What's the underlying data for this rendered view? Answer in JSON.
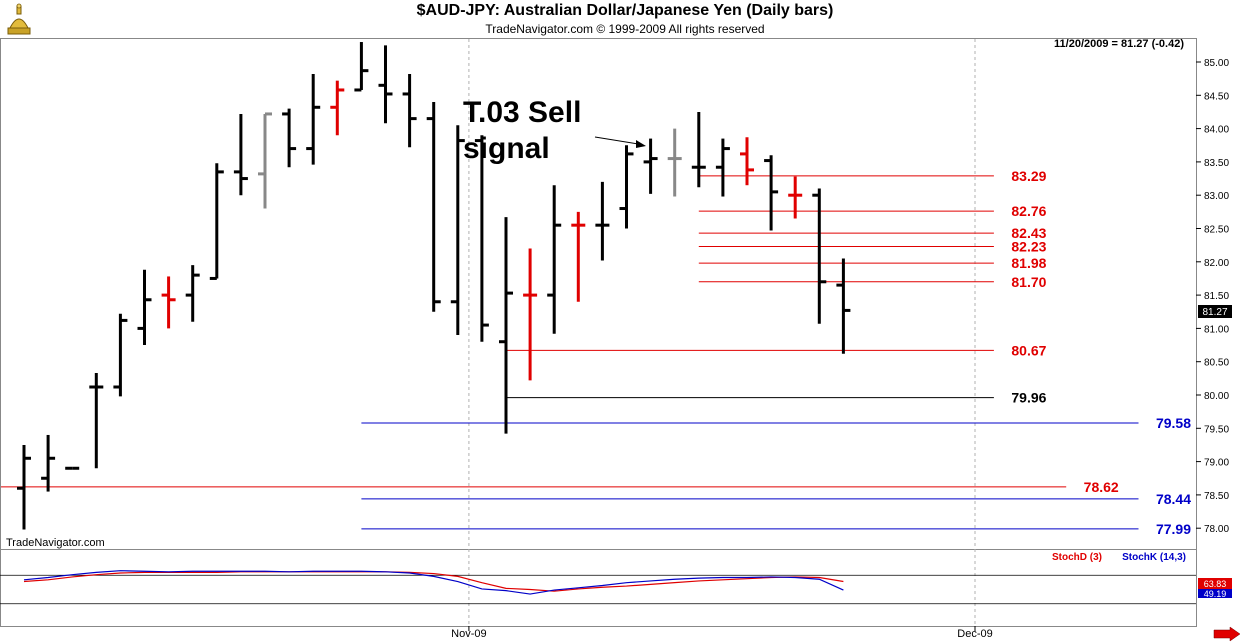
{
  "header": {
    "title": "$AUD-JPY:  Australian Dollar/Japanese Yen  (Daily bars)",
    "subtitle": "TradeNavigator.com © 1999-2009 All rights reserved",
    "last_price_info": "11/20/2009 = 81.27 (-0.42)",
    "watermark": "TradeNavigator.com",
    "logo_icon": "gold-dome-logo"
  },
  "colors": {
    "up_bar": "#000000",
    "down_bar": "#e00000",
    "neutral_bar": "#888888",
    "level_red": "#e00000",
    "level_blue": "#0000c8",
    "level_black": "#000000",
    "stoch_d": "#e00000",
    "stoch_k": "#0000c8",
    "grid": "#b0b0b0"
  },
  "chart_data": [
    {
      "type": "ohlc",
      "title": "$AUD-JPY:  Australian Dollar/Japanese Yen  (Daily bars)",
      "ylim": [
        77.75,
        85.35
      ],
      "y_ticks": [
        "78.00",
        "78.50",
        "79.00",
        "79.50",
        "80.00",
        "80.50",
        "81.00",
        "81.50",
        "82.00",
        "82.50",
        "83.00",
        "83.50",
        "84.00",
        "84.50",
        "85.00"
      ],
      "x_tick_labels": [
        {
          "label": "Nov-09",
          "bar_index": 19
        },
        {
          "label": "Dec-09",
          "bar_index": 40
        }
      ],
      "last_price_label": "81.27",
      "bars": [
        {
          "o": 78.6,
          "h": 79.25,
          "l": 77.98,
          "c": 79.05,
          "col": "up"
        },
        {
          "o": 78.75,
          "h": 79.4,
          "l": 78.55,
          "c": 79.05,
          "col": "up"
        },
        {
          "o": 78.9,
          "h": 78.9,
          "l": 78.9,
          "c": 78.9,
          "col": "up"
        },
        {
          "o": 80.12,
          "h": 80.33,
          "l": 78.9,
          "c": 80.12,
          "col": "up"
        },
        {
          "o": 80.12,
          "h": 81.22,
          "l": 79.98,
          "c": 81.12,
          "col": "up"
        },
        {
          "o": 81.0,
          "h": 81.88,
          "l": 80.75,
          "c": 81.43,
          "col": "up"
        },
        {
          "o": 81.5,
          "h": 81.78,
          "l": 81.0,
          "c": 81.43,
          "col": "down"
        },
        {
          "o": 81.5,
          "h": 81.95,
          "l": 81.1,
          "c": 81.8,
          "col": "up"
        },
        {
          "o": 81.75,
          "h": 83.48,
          "l": 81.75,
          "c": 83.35,
          "col": "up"
        },
        {
          "o": 83.35,
          "h": 84.22,
          "l": 83.0,
          "c": 83.25,
          "col": "up"
        },
        {
          "o": 83.32,
          "h": 84.22,
          "l": 82.8,
          "c": 84.22,
          "col": "neutral"
        },
        {
          "o": 84.22,
          "h": 84.3,
          "l": 83.42,
          "c": 83.7,
          "col": "up"
        },
        {
          "o": 83.7,
          "h": 84.82,
          "l": 83.46,
          "c": 84.32,
          "col": "up"
        },
        {
          "o": 84.32,
          "h": 84.72,
          "l": 83.9,
          "c": 84.58,
          "col": "down"
        },
        {
          "o": 84.58,
          "h": 85.3,
          "l": 84.58,
          "c": 84.87,
          "col": "up"
        },
        {
          "o": 84.65,
          "h": 85.25,
          "l": 84.08,
          "c": 84.52,
          "col": "up"
        },
        {
          "o": 84.52,
          "h": 84.82,
          "l": 83.72,
          "c": 84.15,
          "col": "up"
        },
        {
          "o": 84.15,
          "h": 84.4,
          "l": 81.25,
          "c": 81.4,
          "col": "up"
        },
        {
          "o": 81.4,
          "h": 84.05,
          "l": 80.9,
          "c": 83.82,
          "col": "up"
        },
        {
          "o": 83.82,
          "h": 83.9,
          "l": 80.8,
          "c": 81.05,
          "col": "up"
        },
        {
          "o": 80.8,
          "h": 82.67,
          "l": 79.42,
          "c": 81.53,
          "col": "up"
        },
        {
          "o": 81.5,
          "h": 82.2,
          "l": 80.22,
          "c": 81.5,
          "col": "down"
        },
        {
          "o": 81.5,
          "h": 83.15,
          "l": 80.92,
          "c": 82.55,
          "col": "up"
        },
        {
          "o": 82.55,
          "h": 82.75,
          "l": 81.4,
          "c": 82.55,
          "col": "down"
        },
        {
          "o": 82.55,
          "h": 83.2,
          "l": 82.02,
          "c": 82.55,
          "col": "up"
        },
        {
          "o": 82.8,
          "h": 83.75,
          "l": 82.5,
          "c": 83.62,
          "col": "up"
        },
        {
          "o": 83.5,
          "h": 83.85,
          "l": 83.02,
          "c": 83.55,
          "col": "up"
        },
        {
          "o": 83.55,
          "h": 84.0,
          "l": 82.98,
          "c": 83.55,
          "col": "neutral"
        },
        {
          "o": 83.42,
          "h": 84.25,
          "l": 83.12,
          "c": 83.42,
          "col": "up"
        },
        {
          "o": 83.42,
          "h": 83.85,
          "l": 82.98,
          "c": 83.7,
          "col": "up"
        },
        {
          "o": 83.62,
          "h": 83.87,
          "l": 83.15,
          "c": 83.38,
          "col": "down"
        },
        {
          "o": 83.52,
          "h": 83.6,
          "l": 82.47,
          "c": 83.05,
          "col": "up"
        },
        {
          "o": 83.0,
          "h": 83.28,
          "l": 82.65,
          "c": 83.0,
          "col": "down"
        },
        {
          "o": 83.0,
          "h": 83.1,
          "l": 81.07,
          "c": 81.7,
          "col": "up"
        },
        {
          "o": 81.65,
          "h": 82.05,
          "l": 80.62,
          "c": 81.27,
          "col": "up"
        }
      ],
      "price_levels": [
        {
          "value": 83.29,
          "label": "83.29",
          "color": "red",
          "from_bar": 28,
          "to_bar": 39
        },
        {
          "value": 82.76,
          "label": "82.76",
          "color": "red",
          "from_bar": 28,
          "to_bar": 39
        },
        {
          "value": 82.43,
          "label": "82.43",
          "color": "red",
          "from_bar": 28,
          "to_bar": 39
        },
        {
          "value": 82.23,
          "label": "82.23",
          "color": "red",
          "from_bar": 28,
          "to_bar": 39
        },
        {
          "value": 81.98,
          "label": "81.98",
          "color": "red",
          "from_bar": 28,
          "to_bar": 39
        },
        {
          "value": 81.7,
          "label": "81.70",
          "color": "red",
          "from_bar": 28,
          "to_bar": 39
        },
        {
          "value": 80.67,
          "label": "80.67",
          "color": "red",
          "from_bar": 20,
          "to_bar": 39
        },
        {
          "value": 79.96,
          "label": "79.96",
          "color": "black",
          "from_bar": 20,
          "to_bar": 39
        },
        {
          "value": 79.58,
          "label": "79.58",
          "color": "blue",
          "from_bar": 14,
          "to_bar": 45
        },
        {
          "value": 78.62,
          "label": "78.62",
          "color": "red",
          "from_bar": -1,
          "to_bar": 42
        },
        {
          "value": 78.44,
          "label": "78.44",
          "color": "blue",
          "from_bar": 14,
          "to_bar": 45
        },
        {
          "value": 77.99,
          "label": "77.99",
          "color": "blue",
          "from_bar": 14,
          "to_bar": 45
        }
      ],
      "annotations": [
        {
          "text": "T.03 Sell",
          "target_bar": 27
        },
        {
          "text": "signal",
          "target_bar": 27
        }
      ]
    },
    {
      "type": "line",
      "title": "",
      "ylim": [
        0,
        100
      ],
      "reference_lines": [
        75,
        25
      ],
      "series": [
        {
          "name": "StochD (3)",
          "color": "red",
          "value_label": "63.83",
          "values": [
            64,
            67,
            72,
            76,
            79,
            80,
            80,
            80,
            80,
            81,
            81,
            81,
            81,
            81,
            81,
            81,
            80,
            78,
            73,
            62,
            52,
            50,
            47,
            51,
            54,
            56,
            59,
            62,
            65,
            67,
            69,
            71,
            72,
            71,
            64
          ]
        },
        {
          "name": "StochK (14,3)",
          "color": "blue",
          "value_label": "49.19",
          "values": [
            67,
            71,
            76,
            80,
            83,
            82,
            81,
            82,
            82,
            82,
            82,
            81,
            82,
            82,
            82,
            81,
            79,
            73,
            64,
            51,
            48,
            42,
            49,
            53,
            57,
            62,
            65,
            68,
            70,
            71,
            71,
            72,
            71,
            68,
            49
          ]
        }
      ]
    }
  ]
}
